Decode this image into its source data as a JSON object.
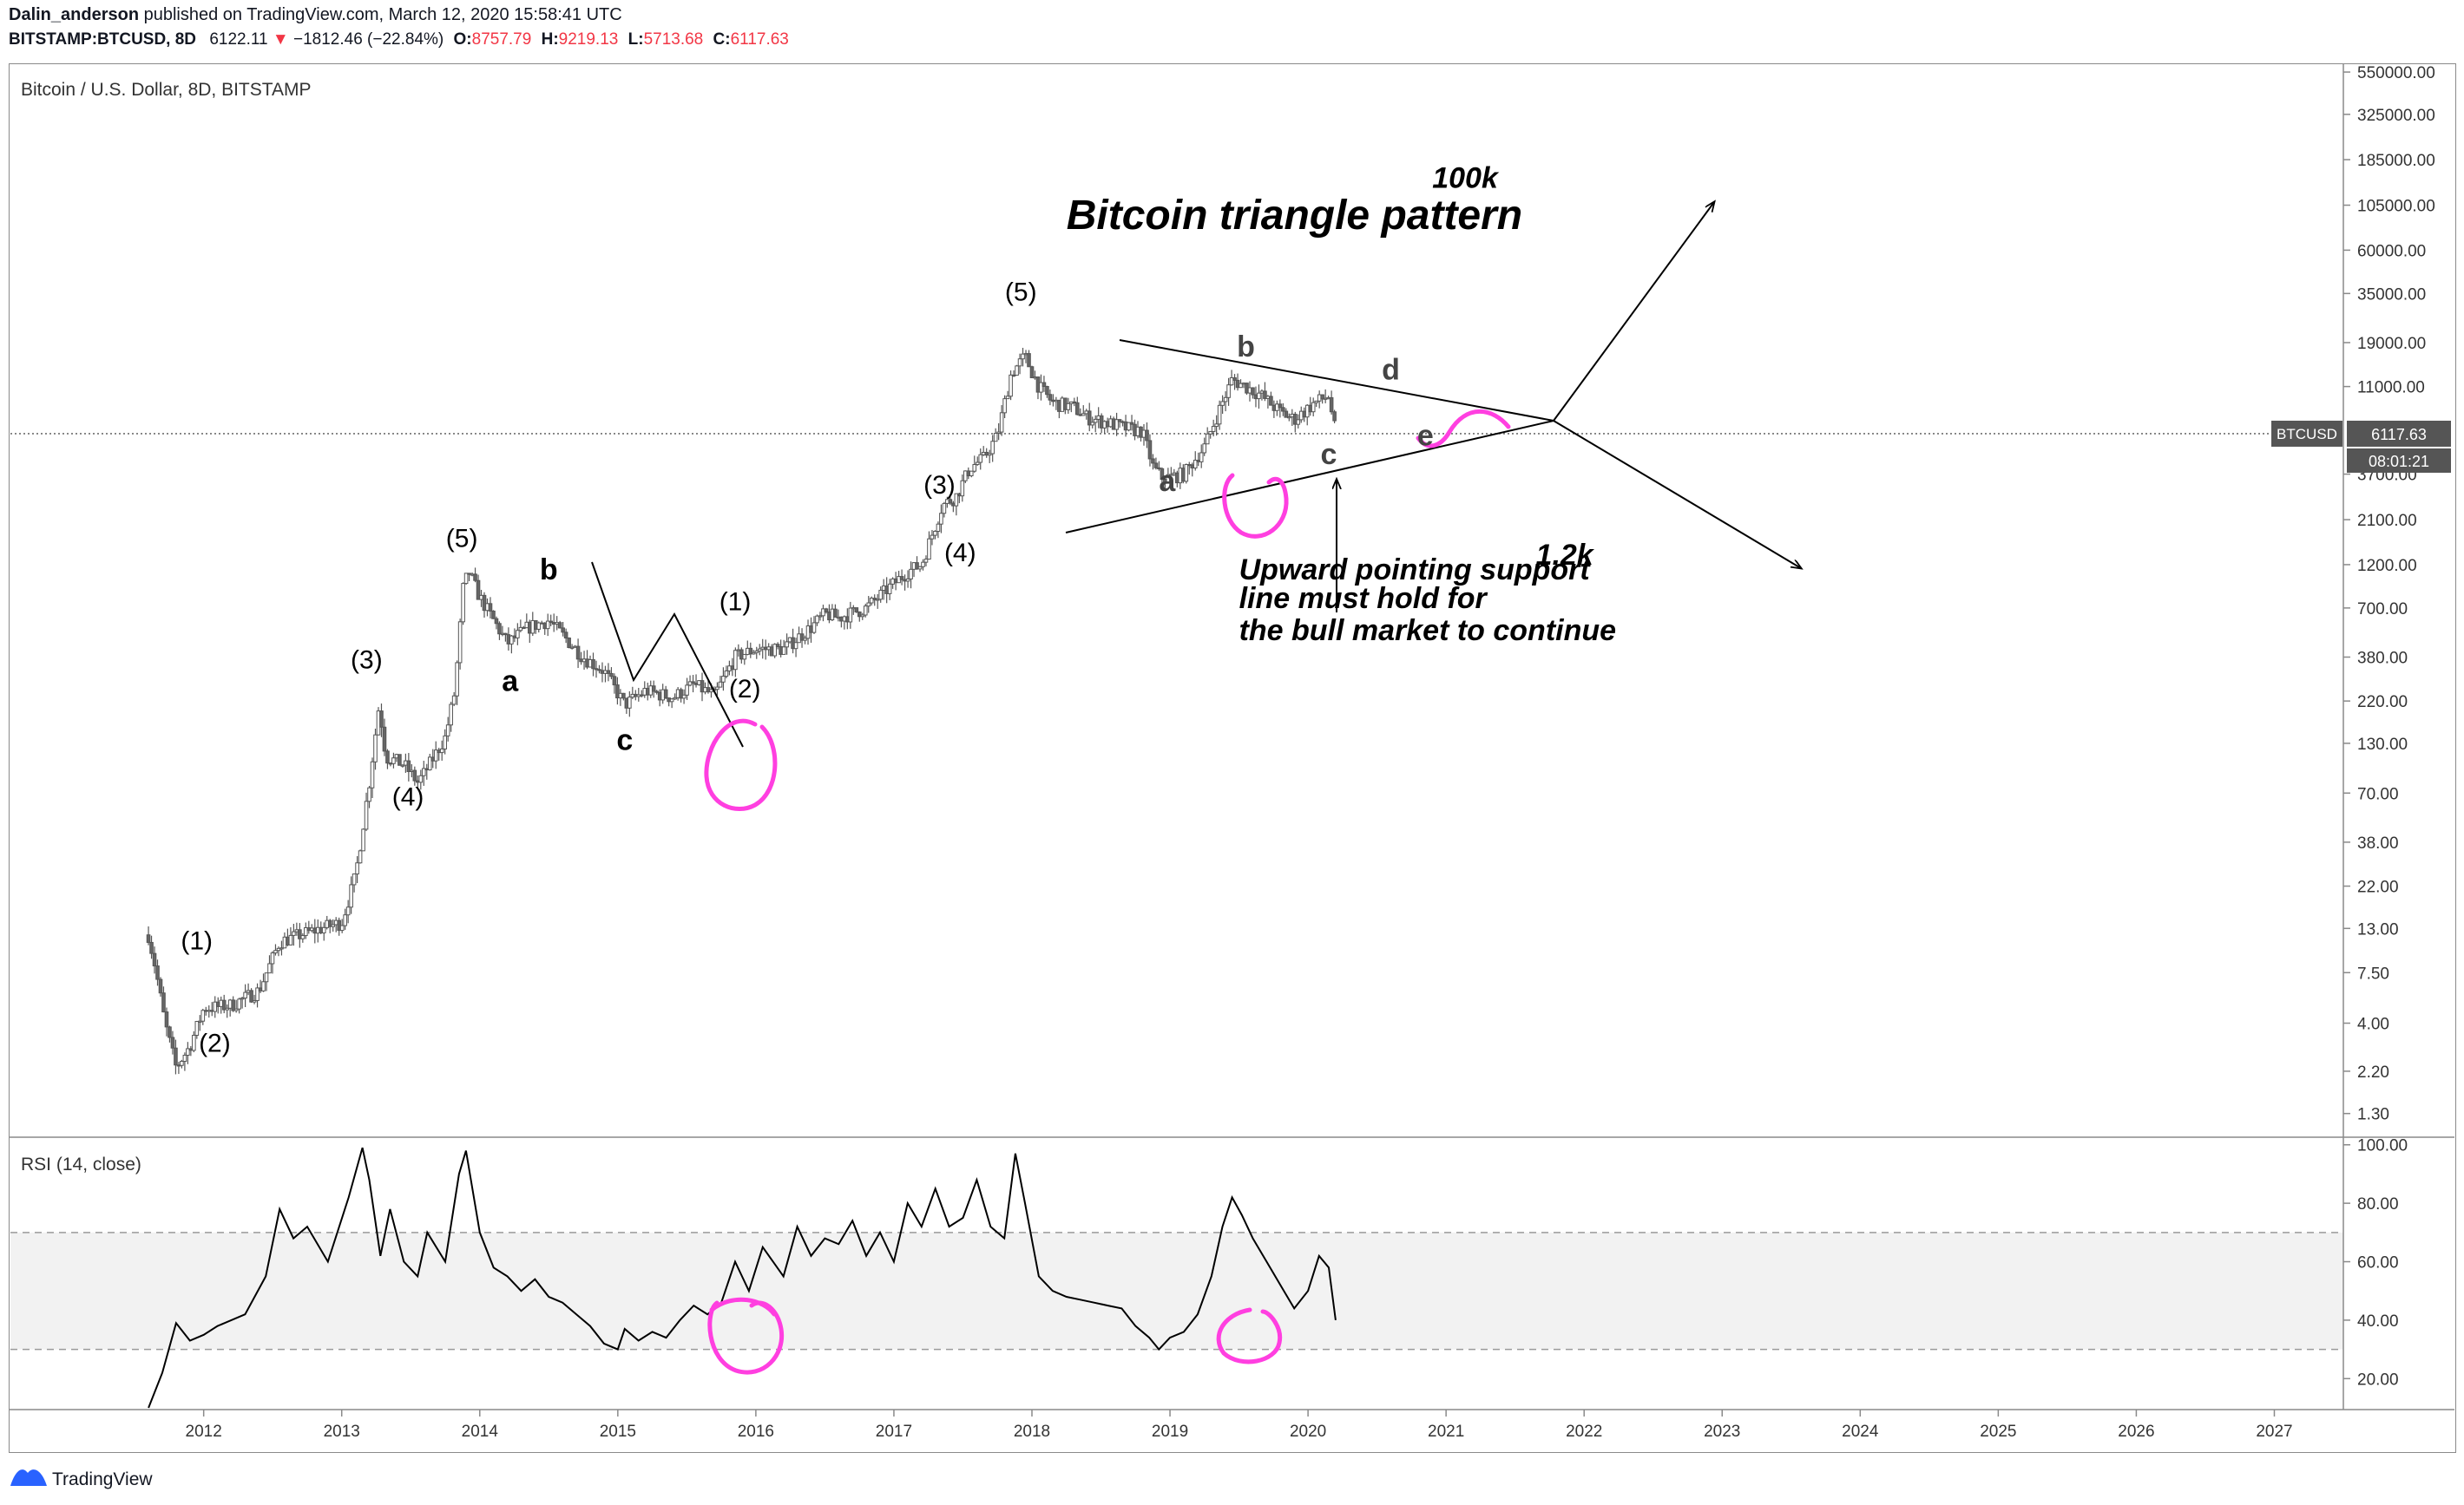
{
  "header": {
    "author": "Dalin_anderson",
    "published": "published on TradingView.com, March 12, 2020 15:58:41 UTC",
    "symbol": "BITSTAMP:BTCUSD, 8D",
    "last": "6122.11",
    "change": "−1812.46 (−22.84%)",
    "o_label": "O:",
    "o": "8757.79",
    "h_label": "H:",
    "h": "9219.13",
    "l_label": "L:",
    "l": "5713.68",
    "c_label": "C:",
    "c": "6117.63"
  },
  "colors": {
    "up": "#089981",
    "down": "#f23645",
    "annot": "#ff3fe0"
  },
  "chart_data": [
    {
      "type": "candlestick",
      "title": "Bitcoin / U.S. Dollar, 8D, BITSTAMP",
      "scale": "log",
      "ylim": [
        1.0,
        600000
      ],
      "y_ticks": [
        "550000.00",
        "325000.00",
        "185000.00",
        "105000.00",
        "60000.00",
        "35000.00",
        "19000.00",
        "11000.00",
        "3700.00",
        "2100.00",
        "1200.00",
        "700.00",
        "380.00",
        "220.00",
        "130.00",
        "70.00",
        "38.00",
        "22.00",
        "13.00",
        "7.50",
        "4.00",
        "2.20",
        "1.30"
      ],
      "y_tick_values": [
        550000,
        325000,
        185000,
        105000,
        60000,
        35000,
        19000,
        11000,
        3700,
        2100,
        1200,
        700,
        380,
        220,
        130,
        70,
        38,
        22,
        13,
        7.5,
        4,
        2.2,
        1.3
      ],
      "last_price_tag": "BTCUSD",
      "last_price_value": "6117.63",
      "last_price": 6117.63,
      "countdown": "08:01:21",
      "x_ticks": [
        "2012",
        "2013",
        "2014",
        "2015",
        "2016",
        "2017",
        "2018",
        "2019",
        "2020",
        "2021",
        "2022",
        "2023",
        "2024",
        "2025",
        "2026",
        "2027"
      ],
      "x_tick_years": [
        2012,
        2013,
        2014,
        2015,
        2016,
        2017,
        2018,
        2019,
        2020,
        2021,
        2022,
        2023,
        2024,
        2025,
        2026,
        2027
      ],
      "xlim": [
        2010.6,
        2027.5
      ],
      "price_path": [
        [
          2011.6,
          12
        ],
        [
          2011.65,
          8
        ],
        [
          2011.72,
          4
        ],
        [
          2011.8,
          2.3
        ],
        [
          2011.9,
          3
        ],
        [
          2012.0,
          4.8
        ],
        [
          2012.2,
          5
        ],
        [
          2012.4,
          6
        ],
        [
          2012.55,
          11
        ],
        [
          2012.7,
          12
        ],
        [
          2012.85,
          13
        ],
        [
          2013.0,
          14
        ],
        [
          2013.1,
          25
        ],
        [
          2013.2,
          80
        ],
        [
          2013.27,
          210
        ],
        [
          2013.32,
          110
        ],
        [
          2013.45,
          100
        ],
        [
          2013.55,
          80
        ],
        [
          2013.6,
          90
        ],
        [
          2013.75,
          140
        ],
        [
          2013.82,
          250
        ],
        [
          2013.88,
          900
        ],
        [
          2013.92,
          1100
        ],
        [
          2014.0,
          800
        ],
        [
          2014.1,
          600
        ],
        [
          2014.2,
          450
        ],
        [
          2014.35,
          550
        ],
        [
          2014.5,
          600
        ],
        [
          2014.6,
          500
        ],
        [
          2014.75,
          380
        ],
        [
          2014.9,
          320
        ],
        [
          2015.05,
          210
        ],
        [
          2015.2,
          250
        ],
        [
          2015.4,
          230
        ],
        [
          2015.55,
          270
        ],
        [
          2015.7,
          235
        ],
        [
          2015.85,
          380
        ],
        [
          2016.0,
          420
        ],
        [
          2016.2,
          420
        ],
        [
          2016.4,
          550
        ],
        [
          2016.5,
          650
        ],
        [
          2016.6,
          620
        ],
        [
          2016.8,
          700
        ],
        [
          2017.0,
          950
        ],
        [
          2017.1,
          1100
        ],
        [
          2017.2,
          1200
        ],
        [
          2017.35,
          2500
        ],
        [
          2017.45,
          2800
        ],
        [
          2017.55,
          4000
        ],
        [
          2017.65,
          4500
        ],
        [
          2017.75,
          6000
        ],
        [
          2017.85,
          13000
        ],
        [
          2017.95,
          16000
        ],
        [
          2018.05,
          11000
        ],
        [
          2018.15,
          9000
        ],
        [
          2018.3,
          8500
        ],
        [
          2018.4,
          7500
        ],
        [
          2018.55,
          7000
        ],
        [
          2018.7,
          6500
        ],
        [
          2018.8,
          6300
        ],
        [
          2018.88,
          4000
        ],
        [
          2018.95,
          3500
        ],
        [
          2019.1,
          3700
        ],
        [
          2019.25,
          5200
        ],
        [
          2019.35,
          8000
        ],
        [
          2019.45,
          12000
        ],
        [
          2019.55,
          11000
        ],
        [
          2019.65,
          10000
        ],
        [
          2019.8,
          8000
        ],
        [
          2019.9,
          7300
        ],
        [
          2020.05,
          9000
        ],
        [
          2020.15,
          9800
        ],
        [
          2020.2,
          6120
        ]
      ],
      "wave_labels": [
        {
          "text": "(1)",
          "x": 2011.95,
          "y": 10
        },
        {
          "text": "(2)",
          "x": 2012.08,
          "y": 2.8
        },
        {
          "text": "(3)",
          "x": 2013.18,
          "y": 330
        },
        {
          "text": "(4)",
          "x": 2013.48,
          "y": 60
        },
        {
          "text": "(5)",
          "x": 2013.87,
          "y": 1500
        },
        {
          "text": "b",
          "x": 2014.5,
          "y": 1000
        },
        {
          "text": "a",
          "x": 2014.22,
          "y": 250
        },
        {
          "text": "c",
          "x": 2015.05,
          "y": 120
        },
        {
          "text": "(1)",
          "x": 2015.85,
          "y": 680
        },
        {
          "text": "(2)",
          "x": 2015.92,
          "y": 230
        },
        {
          "text": "(3)",
          "x": 2017.33,
          "y": 2900
        },
        {
          "text": "(4)",
          "x": 2017.48,
          "y": 1250
        },
        {
          "text": "(5)",
          "x": 2017.92,
          "y": 32000
        },
        {
          "text": "b",
          "x": 2019.55,
          "y": 16000
        },
        {
          "text": "d",
          "x": 2020.6,
          "y": 12000
        },
        {
          "text": "a",
          "x": 2018.98,
          "y": 3000
        },
        {
          "text": "c",
          "x": 2020.15,
          "y": 4200
        },
        {
          "text": "e",
          "x": 2020.85,
          "y": 5300
        }
      ],
      "annotations": [
        {
          "text": "Bitcoin triangle pattern",
          "x": 2018.25,
          "y": 78000
        },
        {
          "text": "100k",
          "x": 2020.9,
          "y": 130000
        },
        {
          "text": "1.2k",
          "x": 2021.65,
          "y": 1200
        },
        {
          "text": "Upward pointing support",
          "x": 2019.5,
          "y": 1000
        },
        {
          "text": "line must hold for",
          "x": 2019.5,
          "y": 700
        },
        {
          "text": "the bull market to continue",
          "x": 2019.5,
          "y": 470
        }
      ]
    },
    {
      "type": "line",
      "title": "RSI (14, close)",
      "ylim": [
        10,
        102
      ],
      "y_ticks": [
        "100.00",
        "80.00",
        "60.00",
        "40.00",
        "20.00"
      ],
      "y_tick_values": [
        100,
        80,
        60,
        40,
        20
      ],
      "band": [
        30,
        70
      ],
      "x": [
        2011.6,
        2011.7,
        2011.8,
        2011.9,
        2012.0,
        2012.1,
        2012.3,
        2012.45,
        2012.55,
        2012.65,
        2012.75,
        2012.9,
        2013.05,
        2013.15,
        2013.2,
        2013.28,
        2013.35,
        2013.45,
        2013.55,
        2013.62,
        2013.75,
        2013.85,
        2013.9,
        2014.0,
        2014.1,
        2014.2,
        2014.3,
        2014.4,
        2014.5,
        2014.6,
        2014.7,
        2014.8,
        2014.9,
        2015.0,
        2015.05,
        2015.15,
        2015.25,
        2015.35,
        2015.45,
        2015.55,
        2015.65,
        2015.75,
        2015.85,
        2015.95,
        2016.05,
        2016.2,
        2016.3,
        2016.4,
        2016.5,
        2016.6,
        2016.7,
        2016.8,
        2016.9,
        2017.0,
        2017.1,
        2017.2,
        2017.3,
        2017.4,
        2017.5,
        2017.6,
        2017.7,
        2017.8,
        2017.88,
        2017.95,
        2018.05,
        2018.15,
        2018.25,
        2018.35,
        2018.45,
        2018.55,
        2018.65,
        2018.75,
        2018.85,
        2018.92,
        2019.0,
        2019.1,
        2019.2,
        2019.3,
        2019.38,
        2019.45,
        2019.52,
        2019.6,
        2019.7,
        2019.8,
        2019.9,
        2020.0,
        2020.08,
        2020.15,
        2020.2
      ],
      "values": [
        10,
        22,
        39,
        33,
        35,
        38,
        42,
        55,
        78,
        68,
        72,
        60,
        82,
        99,
        88,
        62,
        78,
        60,
        55,
        70,
        60,
        90,
        98,
        70,
        58,
        55,
        50,
        54,
        48,
        46,
        42,
        38,
        32,
        30,
        37,
        33,
        36,
        34,
        40,
        45,
        42,
        46,
        60,
        50,
        65,
        55,
        72,
        62,
        68,
        66,
        74,
        62,
        70,
        60,
        80,
        72,
        85,
        72,
        75,
        88,
        72,
        68,
        97,
        80,
        55,
        50,
        48,
        47,
        46,
        45,
        44,
        38,
        34,
        30,
        34,
        36,
        42,
        55,
        72,
        82,
        76,
        68,
        60,
        52,
        44,
        50,
        62,
        58,
        40
      ],
      "values_note": "approximate"
    }
  ],
  "footer": {
    "brand": "TradingView"
  }
}
